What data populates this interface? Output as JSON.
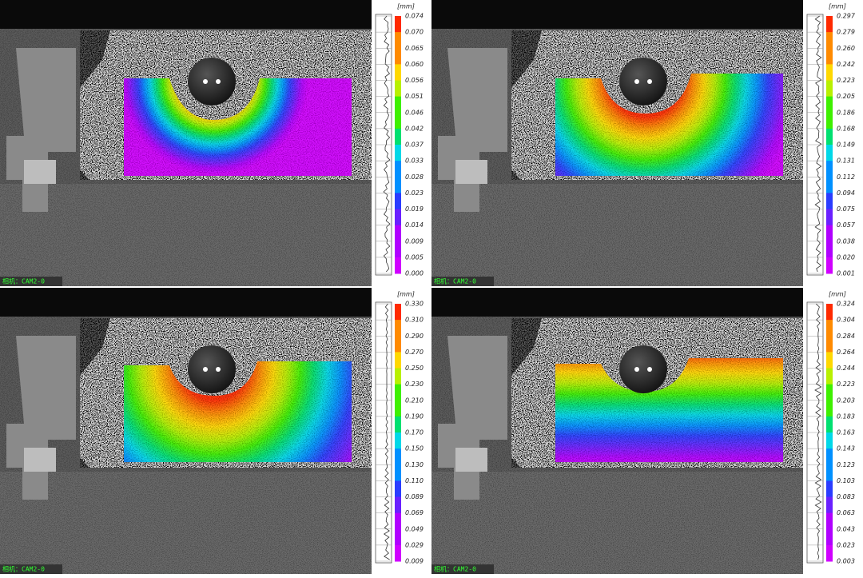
{
  "panels": [
    {
      "unit": "[mm]",
      "camera_label": "相机：CAM2-0",
      "colorbar_labels": [
        "0.074",
        "0.070",
        "0.065",
        "0.060",
        "0.056",
        "0.051",
        "0.046",
        "0.042",
        "0.037",
        "0.033",
        "0.028",
        "0.023",
        "0.019",
        "0.014",
        "0.009",
        "0.005",
        "0.000"
      ]
    },
    {
      "unit": "[mm]",
      "camera_label": "相机：CAM2-0",
      "colorbar_labels": [
        "0.297",
        "0.279",
        "0.260",
        "0.242",
        "0.223",
        "0.205",
        "0.186",
        "0.168",
        "0.149",
        "0.131",
        "0.112",
        "0.094",
        "0.075",
        "0.057",
        "0.038",
        "0.020",
        "0.001"
      ]
    },
    {
      "unit": "[mm]",
      "camera_label": "相机：CAM2-0",
      "colorbar_labels": [
        "0.330",
        "0.310",
        "0.290",
        "0.270",
        "0.250",
        "0.230",
        "0.210",
        "0.190",
        "0.170",
        "0.150",
        "0.130",
        "0.110",
        "0.089",
        "0.069",
        "0.049",
        "0.029",
        "0.009"
      ]
    },
    {
      "unit": "[mm]",
      "camera_label": "相机：CAM2-0",
      "colorbar_labels": [
        "0.324",
        "0.304",
        "0.284",
        "0.264",
        "0.244",
        "0.223",
        "0.203",
        "0.183",
        "0.163",
        "0.143",
        "0.123",
        "0.103",
        "0.083",
        "0.063",
        "0.043",
        "0.023",
        "0.003"
      ]
    }
  ]
}
